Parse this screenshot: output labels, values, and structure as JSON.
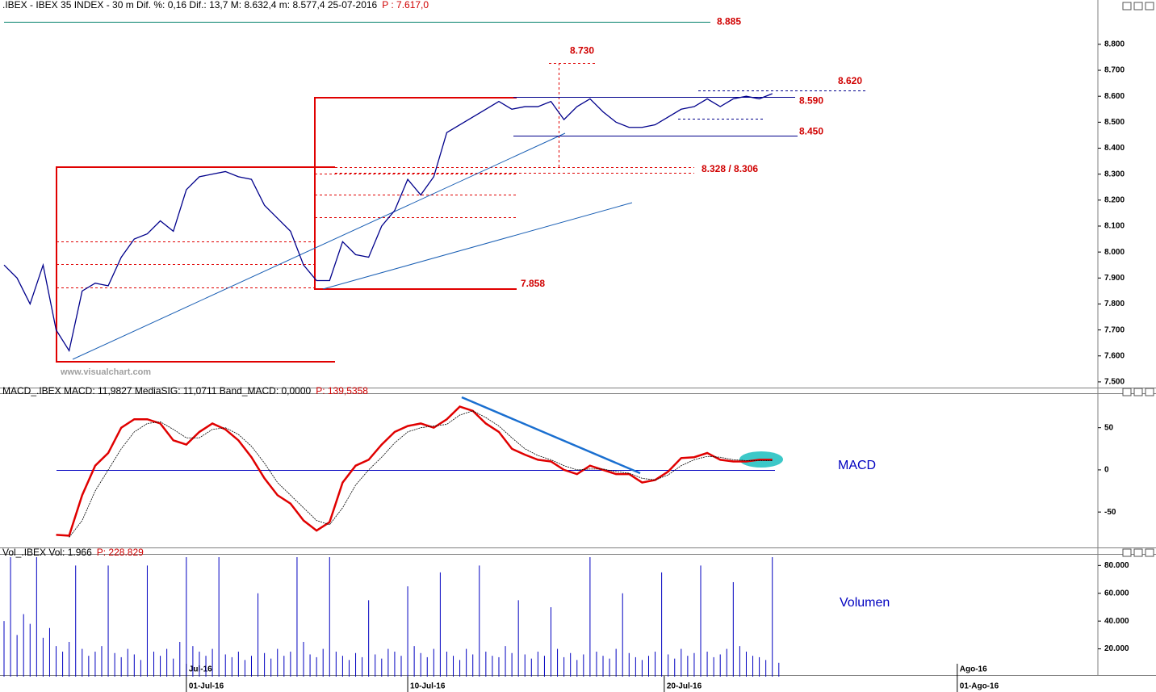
{
  "chart_data": [
    {
      "type": "price",
      "title": ".IBEX - IBEX 35 INDEX -  30 m  Dif. %: 0,16  Dif.: 13,7  M: 8.632,4  m: 8.577,4  25-07-2016",
      "subtitle": "P : 7.617,0",
      "watermark": "www.visualchart.com",
      "color": "#00008b",
      "xlim": [
        0,
        84
      ],
      "xticks": [
        {
          "value": 14,
          "label": "01-Jul-16"
        },
        {
          "value": 31,
          "label": "10-Jul-16"
        },
        {
          "value": 50.7,
          "label": "20-Jul-16"
        },
        {
          "value": 73.2,
          "label": "01-Ago-16"
        }
      ],
      "month_ticks": [
        {
          "value": 14,
          "label": "Jul-16"
        },
        {
          "value": 73.2,
          "label": "Ago-16"
        }
      ],
      "ylim": [
        7478,
        8924
      ],
      "yticks": [
        {
          "value": 7500,
          "label": "7.500"
        },
        {
          "value": 7600,
          "label": "7.600"
        },
        {
          "value": 7700,
          "label": "7.700"
        },
        {
          "value": 7800,
          "label": "7.800"
        },
        {
          "value": 7900,
          "label": "7.900"
        },
        {
          "value": 8000,
          "label": "8.000"
        },
        {
          "value": 8100,
          "label": "8.100"
        },
        {
          "value": 8200,
          "label": "8.200"
        },
        {
          "value": 8300,
          "label": "8.300"
        },
        {
          "value": 8400,
          "label": "8.400"
        },
        {
          "value": 8500,
          "label": "8.500"
        },
        {
          "value": 8600,
          "label": "8.600"
        },
        {
          "value": 8700,
          "label": "8.700"
        },
        {
          "value": 8800,
          "label": "8.800"
        }
      ],
      "series": [
        {
          "name": "IBEX",
          "color": "#00008b",
          "values": [
            7950,
            7900,
            7800,
            7950,
            7700,
            7620,
            7850,
            7880,
            7870,
            7980,
            8050,
            8070,
            8120,
            8080,
            8240,
            8290,
            8300,
            8310,
            8290,
            8280,
            8180,
            8130,
            8080,
            7950,
            7890,
            7890,
            8040,
            7990,
            7980,
            8100,
            8160,
            8280,
            8220,
            8290,
            8460,
            8490,
            8520,
            8550,
            8580,
            8550,
            8560,
            8560,
            8580,
            8510,
            8560,
            8590,
            8540,
            8500,
            8480,
            8480,
            8490,
            8520,
            8550,
            8560,
            8590,
            8560,
            8590,
            8600,
            8590,
            8610
          ]
        }
      ],
      "annotations": [
        {
          "value": 8885,
          "label": "8.885"
        },
        {
          "value": 8730,
          "label": "8.730"
        },
        {
          "value": 8620,
          "label": "8.620"
        },
        {
          "value": 8590,
          "label": "8.590"
        },
        {
          "value": 8450,
          "label": "8.450"
        },
        {
          "value": 8328,
          "label": "8.328 / 8.306"
        },
        {
          "value": 7858,
          "label": "7.858"
        }
      ]
    },
    {
      "type": "macd",
      "title": "MACD_.IBEX MACD: 11,9827  MediaSIG: 11,0711  Band_MACD: 0,0000",
      "subtitle": "P: 139,5358",
      "label": "MACD",
      "xlim": [
        0,
        84
      ],
      "ylim": [
        -92,
        88
      ],
      "yticks": [
        -50,
        0,
        50
      ],
      "series": [
        {
          "name": "MACD",
          "color": "#e00000",
          "values": [
            null,
            null,
            null,
            null,
            -77,
            -78,
            -30,
            5,
            20,
            50,
            60,
            60,
            55,
            35,
            30,
            45,
            55,
            48,
            35,
            15,
            -10,
            -30,
            -40,
            -60,
            -72,
            -62,
            -15,
            5,
            12,
            30,
            45,
            52,
            55,
            50,
            60,
            75,
            70,
            55,
            45,
            25,
            18,
            12,
            10,
            0,
            -5,
            5,
            0,
            -5,
            -5,
            -15,
            -12,
            -2,
            14,
            15,
            20,
            12,
            10,
            10,
            12,
            12
          ]
        },
        {
          "name": "MediaSIG",
          "color": "#000000",
          "values": [
            null,
            null,
            null,
            null,
            null,
            -80,
            -60,
            -25,
            0,
            25,
            45,
            55,
            57,
            48,
            38,
            38,
            48,
            50,
            42,
            28,
            8,
            -15,
            -30,
            -45,
            -60,
            -65,
            -45,
            -18,
            0,
            15,
            32,
            45,
            50,
            52,
            54,
            65,
            70,
            62,
            52,
            38,
            25,
            17,
            12,
            5,
            0,
            1,
            1,
            -2,
            -4,
            -10,
            -12,
            -6,
            5,
            12,
            16,
            15,
            12,
            11,
            11,
            11
          ]
        }
      ]
    },
    {
      "type": "volume",
      "title": "Vol_.IBEX Vol: 1.966",
      "subtitle": "P: 228.829",
      "label": "Volumen",
      "color": "#0000c0",
      "xlim": [
        0,
        168
      ],
      "ylim": [
        0,
        86000
      ],
      "yticks": [
        {
          "value": 20000,
          "label": "20.000"
        },
        {
          "value": 40000,
          "label": "40.000"
        },
        {
          "value": 60000,
          "label": "60.000"
        },
        {
          "value": 80000,
          "label": "80.000"
        }
      ],
      "values": [
        40000,
        86000,
        30000,
        45000,
        38000,
        86000,
        28000,
        35000,
        22000,
        18000,
        25000,
        80000,
        20000,
        15000,
        18000,
        22000,
        80000,
        17000,
        14000,
        20000,
        16000,
        12000,
        80000,
        18000,
        15000,
        20000,
        13000,
        25000,
        86000,
        22000,
        18000,
        15000,
        20000,
        86000,
        16000,
        14000,
        18000,
        12000,
        15000,
        60000,
        17000,
        13000,
        20000,
        15000,
        18000,
        86000,
        25000,
        16000,
        14000,
        20000,
        86000,
        18000,
        15000,
        12000,
        17000,
        14000,
        55000,
        16000,
        13000,
        20000,
        18000,
        15000,
        65000,
        22000,
        17000,
        14000,
        20000,
        75000,
        18000,
        15000,
        12000,
        20000,
        16000,
        80000,
        18000,
        15000,
        14000,
        22000,
        17000,
        55000,
        16000,
        13000,
        18000,
        15000,
        50000,
        20000,
        14000,
        17000,
        12000,
        16000,
        86000,
        18000,
        15000,
        13000,
        20000,
        60000,
        17000,
        14000,
        12000,
        15000,
        18000,
        75000,
        16000,
        13000,
        20000,
        15000,
        17000,
        80000,
        18000,
        14000,
        16000,
        20000,
        68000,
        22000,
        18000,
        15000,
        14000,
        12000,
        86000,
        10000
      ]
    }
  ]
}
